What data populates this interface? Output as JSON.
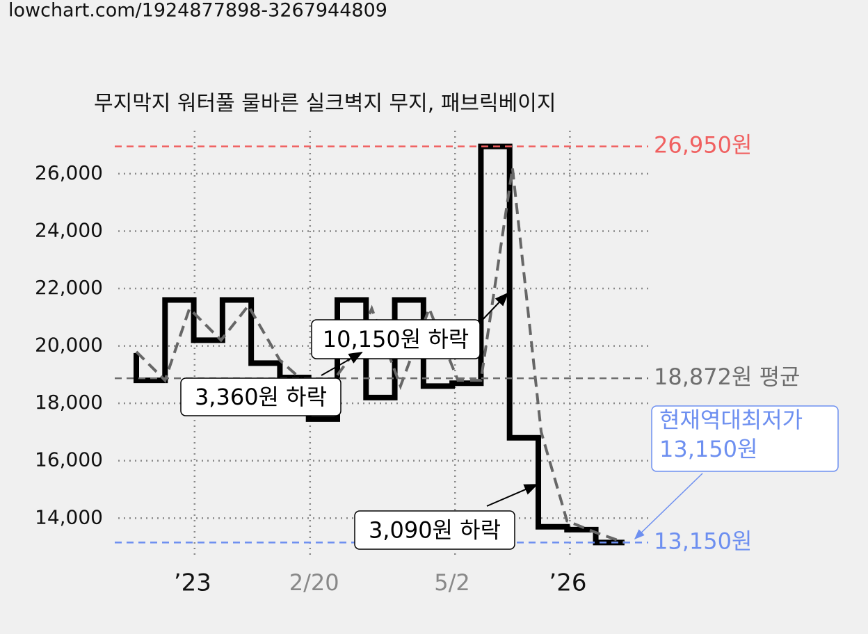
{
  "header": "lowchart.com/1924877898-3267944809",
  "chart_data": {
    "type": "step-line",
    "title": "무지막지 워터풀 물바른 실크벽지 무지, 패브릭베이지",
    "x": [
      0,
      0,
      1,
      2,
      3,
      4,
      5,
      6,
      7,
      8,
      9,
      10,
      11,
      12,
      13,
      14,
      15,
      16,
      17
    ],
    "series": [
      {
        "color": "#000000",
        "values": [
          19750,
          18800,
          21600,
          20200,
          21600,
          19400,
          18900,
          17450,
          21600,
          18200,
          21600,
          18600,
          18700,
          26950,
          16800,
          13700,
          13600,
          13150,
          13150
        ]
      },
      {
        "color": "#666666",
        "dashed": true,
        "x": [
          0,
          1,
          1.85,
          2.95,
          3.9,
          5,
          5.9,
          6.5,
          7.6,
          8.2,
          9.2,
          10.2,
          11.2,
          12,
          13.1,
          14.1,
          15,
          16,
          17
        ],
        "values": [
          19800,
          18800,
          21300,
          20200,
          21400,
          19500,
          18700,
          18300,
          19800,
          21300,
          18600,
          21300,
          18800,
          18800,
          26200,
          17000,
          13900,
          13500,
          13150
        ]
      }
    ],
    "xlim": [
      -0.63,
      17.9
    ],
    "xticks": [
      {
        "value": 2.03,
        "label": "’23"
      },
      {
        "value": 6.05,
        "label": "2/20"
      },
      {
        "value": 11.1,
        "label": "5/2"
      },
      {
        "value": 15.1,
        "label": "’26"
      }
    ],
    "ylim": [
      12700,
      27450
    ],
    "yticks": [
      {
        "value": 14000,
        "label": "14,000"
      },
      {
        "value": 16000,
        "label": "16,000"
      },
      {
        "value": 18000,
        "label": "18,000"
      },
      {
        "value": 20000,
        "label": "20,000"
      },
      {
        "value": 22000,
        "label": "22,000"
      },
      {
        "value": 24000,
        "label": "24,000"
      },
      {
        "value": 26000,
        "label": "26,000"
      }
    ],
    "grid": true,
    "reference_lines": [
      {
        "value": 26950,
        "label": "26,950원",
        "color": "#f06060"
      },
      {
        "value": 18872,
        "label": "18,872원 평균",
        "color": "#6e6e6e"
      },
      {
        "value": 13150,
        "label": "13,150원",
        "color": "#6d8ff0"
      }
    ],
    "annotations": [
      "10,150원 하락",
      "3,360원 하락",
      "3,090원 하락"
    ],
    "callout": {
      "lines": [
        "현재역대최저가",
        "13,150원"
      ],
      "color": "#6d8ff0"
    }
  }
}
